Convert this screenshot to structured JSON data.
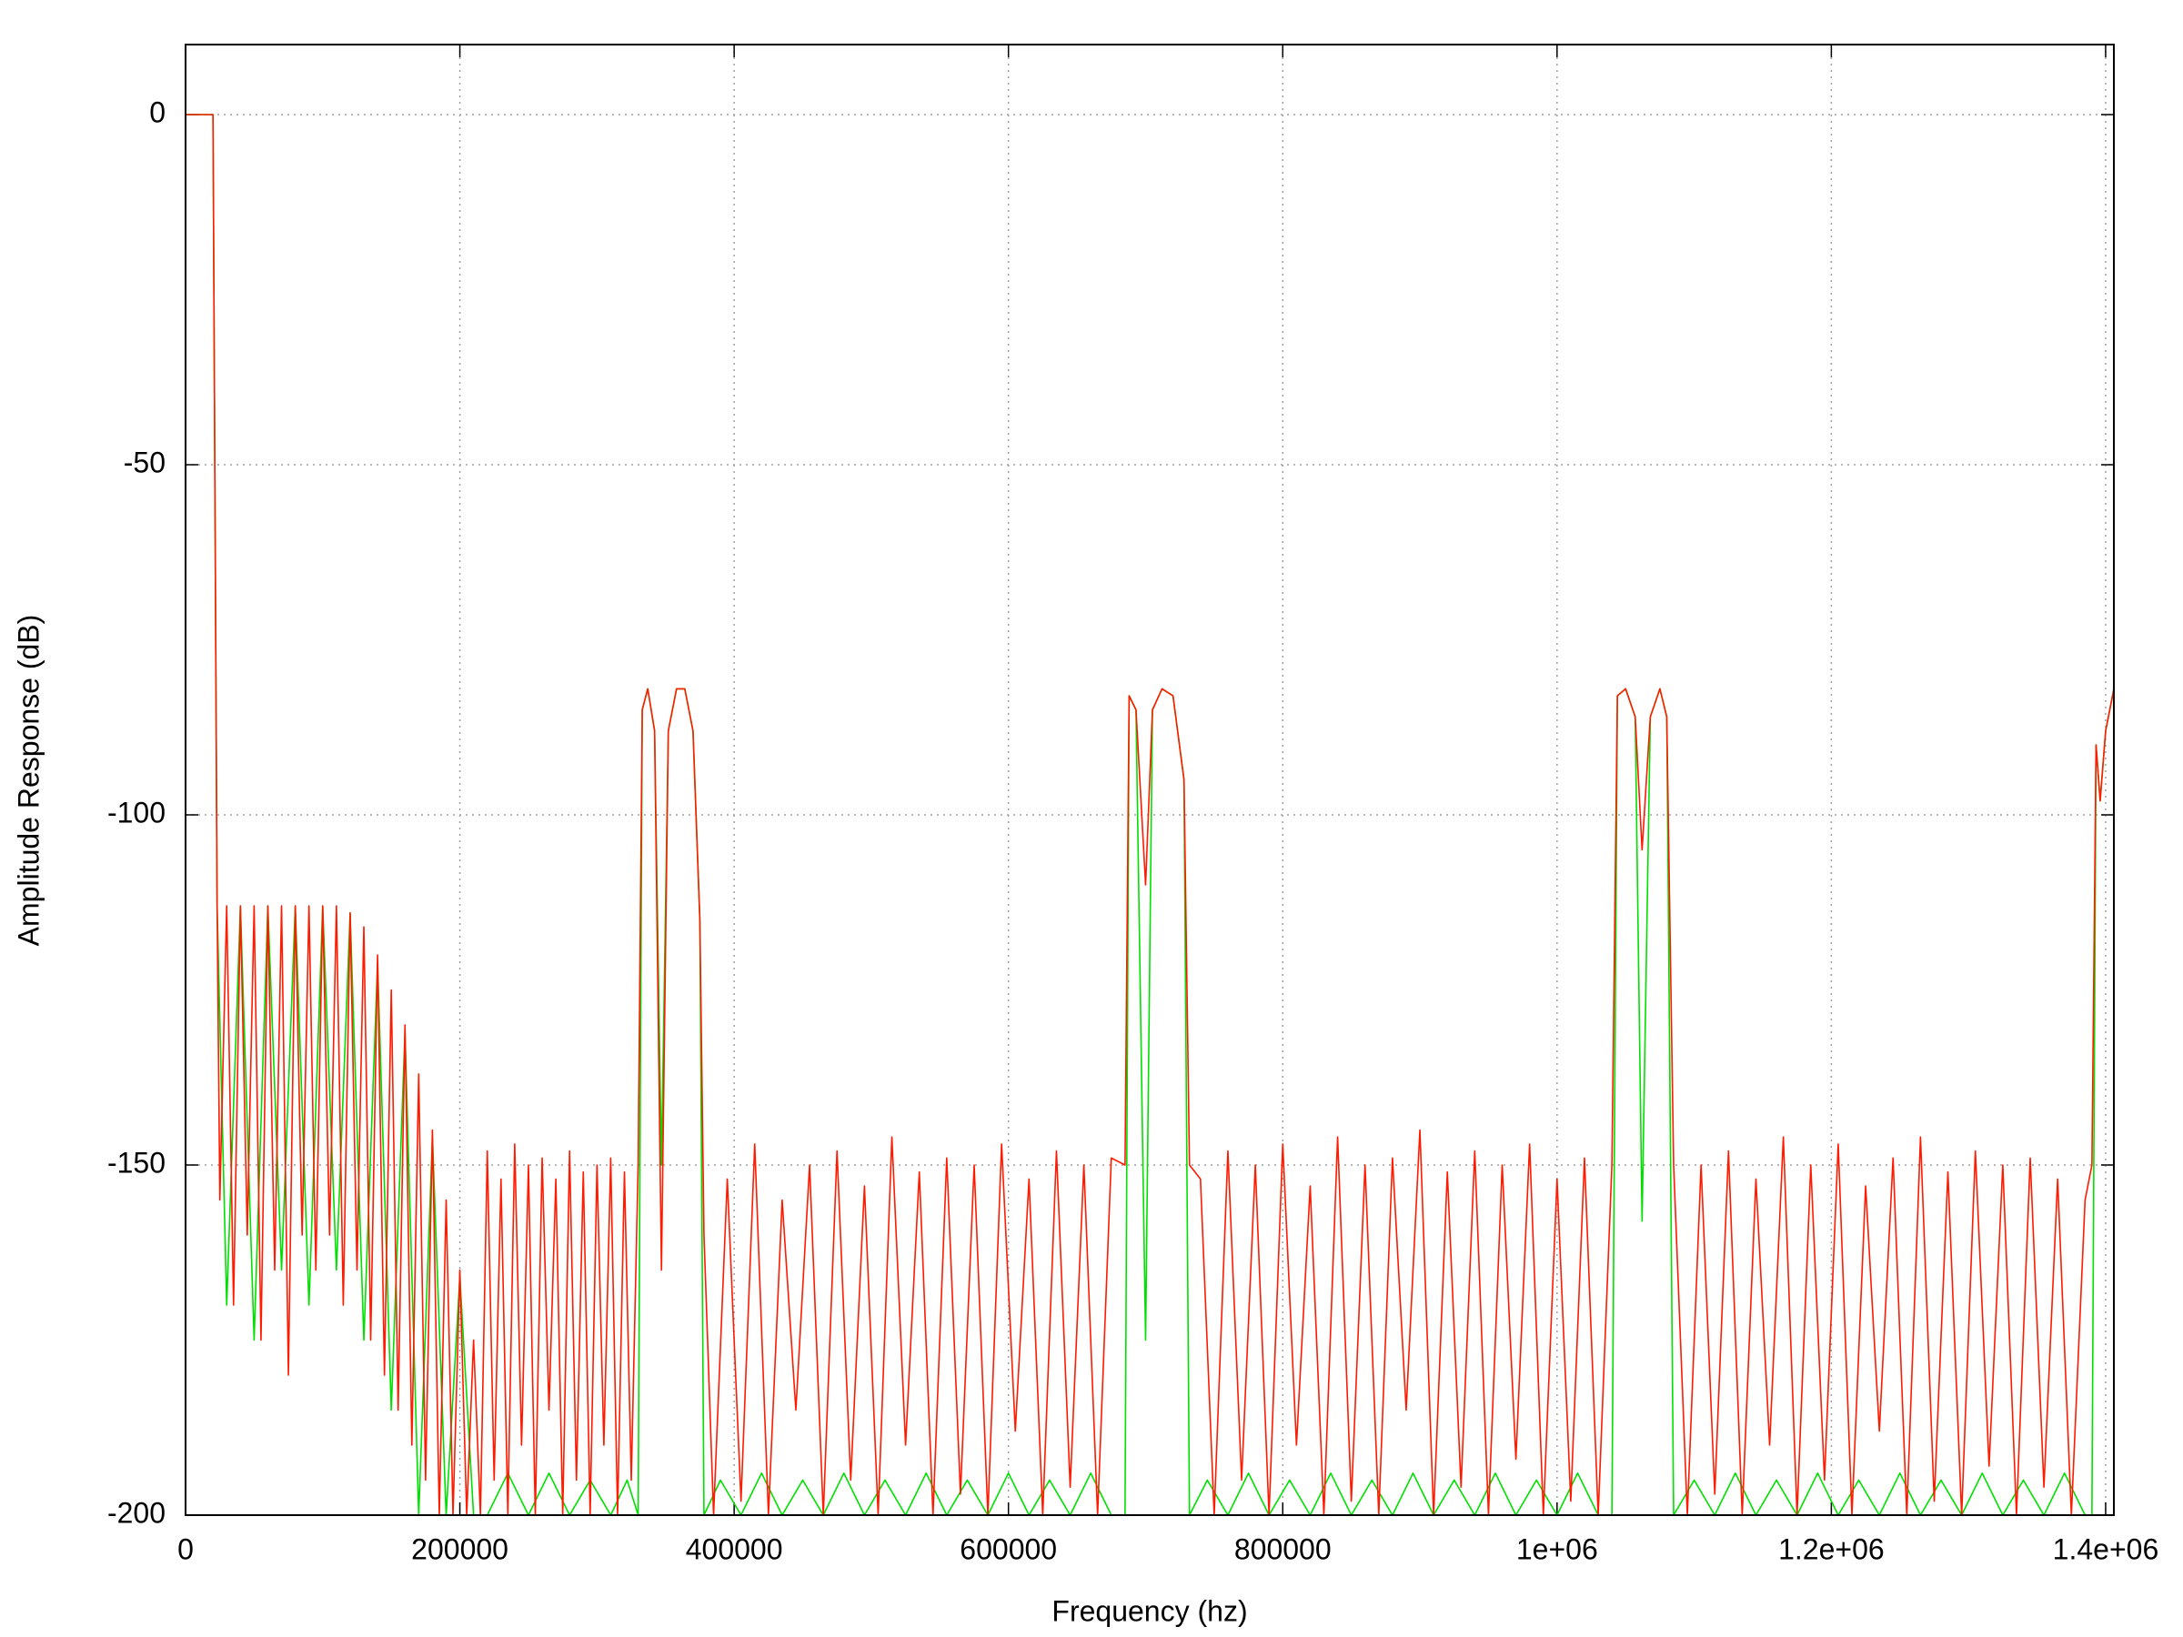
{
  "chart_data": {
    "type": "line",
    "x_label": "Frequency (hz)",
    "y_label": "Amplitude Response (dB)",
    "xlim": [
      0,
      1406000
    ],
    "ylim": [
      -200,
      10
    ],
    "xticks": [
      0,
      200000,
      400000,
      600000,
      800000,
      {
        "value": 1000000,
        "label": "1e+06"
      },
      {
        "value": 1200000,
        "label": "1.2e+06"
      },
      {
        "value": 1400000,
        "label": "1.4e+06"
      }
    ],
    "yticks": [
      -200,
      -150,
      -100,
      -50,
      0
    ],
    "grid": true,
    "series": [
      {
        "color": "#00e000",
        "x": [
          0,
          20000,
          23000,
          30000,
          40000,
          50000,
          60000,
          70000,
          80000,
          90000,
          100000,
          110000,
          120000,
          130000,
          140000,
          150000,
          160000,
          170000,
          180000,
          190000,
          200000,
          210000,
          220000,
          235000,
          250000,
          265000,
          280000,
          295000,
          310000,
          322000,
          330000,
          333000,
          337000,
          342000,
          347000,
          352000,
          358000,
          364000,
          370000,
          375000,
          378000,
          390000,
          405000,
          420000,
          435000,
          450000,
          465000,
          480000,
          495000,
          510000,
          525000,
          540000,
          555000,
          570000,
          585000,
          600000,
          615000,
          630000,
          645000,
          660000,
          675000,
          685000,
          688000,
          693000,
          700000,
          705000,
          712000,
          720000,
          728000,
          732000,
          745000,
          760000,
          775000,
          790000,
          805000,
          820000,
          835000,
          850000,
          865000,
          880000,
          895000,
          910000,
          925000,
          940000,
          955000,
          970000,
          985000,
          1000000,
          1015000,
          1030000,
          1040000,
          1044000,
          1050000,
          1057000,
          1062000,
          1068000,
          1075000,
          1080000,
          1085000,
          1100000,
          1115000,
          1130000,
          1145000,
          1160000,
          1175000,
          1190000,
          1205000,
          1220000,
          1235000,
          1250000,
          1265000,
          1280000,
          1295000,
          1310000,
          1325000,
          1340000,
          1355000,
          1370000,
          1385000,
          1390000,
          1393000,
          1396000,
          1400000,
          1406000
        ],
        "values": [
          0,
          0,
          -113,
          -170,
          -113,
          -175,
          -113,
          -165,
          -113,
          -170,
          -113,
          -165,
          -114,
          -175,
          -121,
          -185,
          -131,
          -200,
          -146,
          -200,
          -166,
          -200,
          -200,
          -194,
          -200,
          -194,
          -200,
          -195,
          -200,
          -195,
          -200,
          -85,
          -82,
          -88,
          -150,
          -88,
          -82,
          -82,
          -88,
          -115,
          -200,
          -195,
          -200,
          -194,
          -200,
          -195,
          -200,
          -194,
          -200,
          -195,
          -200,
          -194,
          -200,
          -195,
          -200,
          -194,
          -200,
          -195,
          -200,
          -194,
          -200,
          -200,
          -83,
          -85,
          -175,
          -85,
          -82,
          -83,
          -95,
          -200,
          -195,
          -200,
          -194,
          -200,
          -195,
          -200,
          -194,
          -200,
          -195,
          -200,
          -194,
          -200,
          -195,
          -200,
          -194,
          -200,
          -195,
          -200,
          -194,
          -200,
          -200,
          -83,
          -82,
          -86,
          -158,
          -86,
          -82,
          -86,
          -200,
          -195,
          -200,
          -194,
          -200,
          -195,
          -200,
          -194,
          -200,
          -195,
          -200,
          -194,
          -200,
          -195,
          -200,
          -194,
          -200,
          -195,
          -200,
          -194,
          -200,
          -200,
          -90,
          -98,
          -88,
          -82
        ]
      },
      {
        "color": "#ff1a00",
        "x": [
          0,
          20000,
          23000,
          25000,
          30000,
          35000,
          40000,
          45000,
          50000,
          55000,
          60000,
          65000,
          70000,
          75000,
          80000,
          85000,
          90000,
          95000,
          100000,
          105000,
          110000,
          115000,
          120000,
          125000,
          130000,
          135000,
          140000,
          145000,
          150000,
          155000,
          160000,
          165000,
          170000,
          175000,
          180000,
          185000,
          190000,
          195000,
          200000,
          205000,
          210000,
          215000,
          220000,
          225000,
          230000,
          235000,
          240000,
          245000,
          250000,
          255000,
          260000,
          265000,
          270000,
          275000,
          280000,
          285000,
          290000,
          295000,
          300000,
          305000,
          310000,
          315000,
          320000,
          325000,
          330000,
          333000,
          337000,
          342000,
          347000,
          352000,
          358000,
          364000,
          370000,
          375000,
          378000,
          385000,
          395000,
          405000,
          415000,
          425000,
          435000,
          445000,
          455000,
          465000,
          475000,
          485000,
          495000,
          505000,
          515000,
          525000,
          535000,
          545000,
          555000,
          565000,
          575000,
          585000,
          595000,
          605000,
          615000,
          625000,
          635000,
          645000,
          655000,
          665000,
          675000,
          685000,
          688000,
          693000,
          700000,
          705000,
          712000,
          720000,
          728000,
          732000,
          740000,
          750000,
          760000,
          770000,
          780000,
          790000,
          800000,
          810000,
          820000,
          830000,
          840000,
          850000,
          860000,
          870000,
          880000,
          890000,
          900000,
          910000,
          920000,
          930000,
          940000,
          950000,
          960000,
          970000,
          980000,
          990000,
          1000000,
          1010000,
          1020000,
          1030000,
          1040000,
          1044000,
          1050000,
          1057000,
          1062000,
          1068000,
          1075000,
          1080000,
          1085000,
          1095000,
          1105000,
          1115000,
          1125000,
          1135000,
          1145000,
          1155000,
          1165000,
          1175000,
          1185000,
          1195000,
          1205000,
          1215000,
          1225000,
          1235000,
          1245000,
          1255000,
          1265000,
          1275000,
          1285000,
          1295000,
          1305000,
          1315000,
          1325000,
          1335000,
          1345000,
          1355000,
          1365000,
          1375000,
          1385000,
          1390000,
          1393000,
          1396000,
          1400000,
          1406000
        ],
        "values": [
          0,
          0,
          -113,
          -155,
          -113,
          -170,
          -113,
          -160,
          -113,
          -175,
          -113,
          -165,
          -113,
          -180,
          -113,
          -160,
          -113,
          -165,
          -113,
          -160,
          -113,
          -170,
          -114,
          -165,
          -116,
          -175,
          -120,
          -180,
          -125,
          -185,
          -130,
          -190,
          -137,
          -195,
          -145,
          -200,
          -155,
          -200,
          -165,
          -200,
          -175,
          -200,
          -148,
          -195,
          -152,
          -200,
          -147,
          -190,
          -150,
          -200,
          -149,
          -185,
          -152,
          -200,
          -148,
          -195,
          -151,
          -200,
          -150,
          -190,
          -149,
          -200,
          -151,
          -195,
          -150,
          -85,
          -82,
          -88,
          -165,
          -88,
          -82,
          -82,
          -88,
          -115,
          -160,
          -200,
          -152,
          -198,
          -147,
          -200,
          -155,
          -185,
          -150,
          -200,
          -148,
          -195,
          -153,
          -200,
          -146,
          -190,
          -151,
          -200,
          -149,
          -197,
          -150,
          -200,
          -147,
          -188,
          -152,
          -200,
          -148,
          -196,
          -150,
          -200,
          -149,
          -150,
          -83,
          -85,
          -110,
          -85,
          -82,
          -83,
          -95,
          -150,
          -152,
          -200,
          -148,
          -195,
          -150,
          -200,
          -147,
          -190,
          -153,
          -200,
          -146,
          -198,
          -150,
          -200,
          -149,
          -185,
          -145,
          -200,
          -151,
          -196,
          -148,
          -200,
          -150,
          -192,
          -147,
          -200,
          -152,
          -198,
          -149,
          -200,
          -150,
          -83,
          -82,
          -86,
          -105,
          -86,
          -82,
          -86,
          -150,
          -200,
          -150,
          -197,
          -148,
          -200,
          -152,
          -190,
          -146,
          -200,
          -150,
          -195,
          -147,
          -200,
          -153,
          -188,
          -149,
          -200,
          -146,
          -198,
          -151,
          -200,
          -148,
          -193,
          -150,
          -200,
          -149,
          -196,
          -152,
          -200,
          -155,
          -150,
          -90,
          -98,
          -88,
          -82
        ]
      }
    ]
  }
}
